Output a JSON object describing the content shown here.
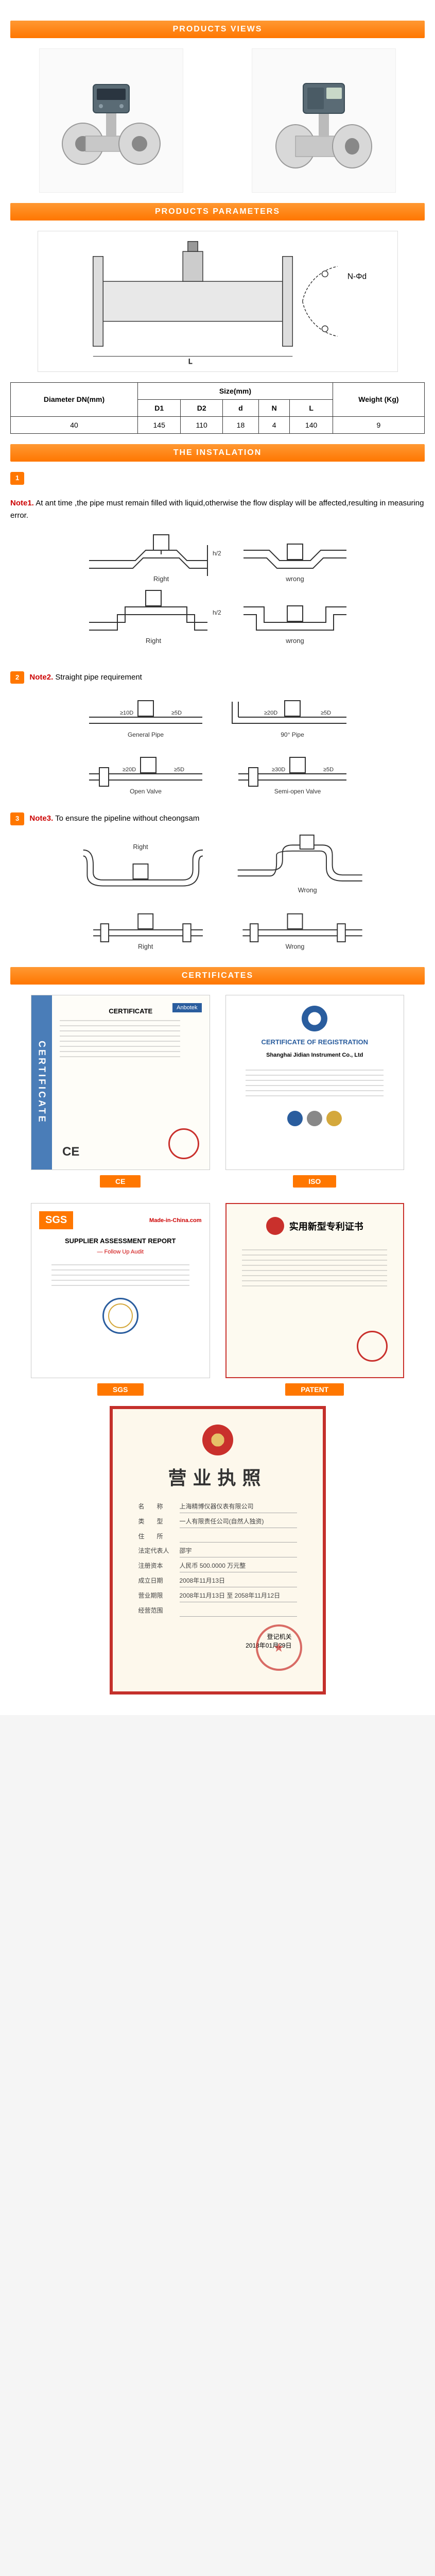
{
  "sections": {
    "views": "PRODUCTS VIEWS",
    "parameters": "PRODUCTS PARAMETERS",
    "installation": "THE INSTALATION",
    "certificates": "CERTIFICATES"
  },
  "colors": {
    "header_bg": "#ff7700",
    "header_gradient_top": "#ff9933",
    "note_red": "#c00",
    "cert_blue": "#4a7db8",
    "license_border": "#c4302b",
    "license_bg": "#fdf8ec"
  },
  "params_table": {
    "headers": {
      "diameter": "Diameter DN(mm)",
      "size": "Size(mm)",
      "weight": "Weight (Kg)",
      "d1": "D1",
      "d2": "D2",
      "d_lower": "d",
      "n": "N",
      "l": "L"
    },
    "row": {
      "diameter": "40",
      "d1": "145",
      "d2": "110",
      "d_lower": "18",
      "n": "4",
      "l": "140",
      "weight": "9"
    }
  },
  "installation": {
    "note1": {
      "badge": "1",
      "label": "Note1.",
      "text": "At ant time ,the pipe must remain filled with liquid,otherwise the flow display will be affected,resulting in measuring error.",
      "diagram_labels": {
        "right": "Right",
        "wrong": "wrong",
        "h_over_2": "h/2"
      }
    },
    "note2": {
      "badge": "2",
      "label": "Note2.",
      "text": "Straight pipe requirement",
      "diagram_labels": {
        "general": "General Pipe",
        "pipe90": "90° Pipe",
        "open_valve": "Open Valve",
        "semi_open": "Semi-open Valve"
      }
    },
    "note3": {
      "badge": "3",
      "label": "Note3.",
      "text": "To ensure the pipeline without cheongsam",
      "diagram_labels": {
        "right": "Right",
        "wrong": "Wrong"
      }
    }
  },
  "diagram_label": "N-Φd",
  "certificates": {
    "ce": {
      "label": "CE",
      "side": "CERTIFICATE",
      "title": "CERTIFICATE",
      "badge": "Anbotek",
      "mark": "CE"
    },
    "iso": {
      "label": "ISO",
      "title": "CERTIFICATE OF REGISTRATION",
      "subtitle": "Shanghai Jidian Instrument Co., Ltd"
    },
    "sgs": {
      "label": "SGS",
      "brand": "SGS",
      "source": "Made-in-China.com",
      "title": "SUPPLIER ASSESSMENT REPORT",
      "subtitle": "— Follow Up Audit"
    },
    "patent": {
      "label": "PATENT",
      "title": "实用新型专利证书"
    }
  },
  "license": {
    "title": "营业执照",
    "fields": [
      {
        "label": "名　　称",
        "value": "上海精博仪器仪表有限公司"
      },
      {
        "label": "类　　型",
        "value": "一人有限责任公司(自然人独资)"
      },
      {
        "label": "住　　所",
        "value": ""
      },
      {
        "label": "法定代表人",
        "value": "邵宇"
      },
      {
        "label": "注册资本",
        "value": "人民币 500.0000 万元整"
      },
      {
        "label": "成立日期",
        "value": "2008年11月13日"
      },
      {
        "label": "营业期限",
        "value": "2008年11月13日 至 2058年11月12日"
      },
      {
        "label": "经营范围",
        "value": ""
      }
    ],
    "registrar": "登记机关",
    "date": "2018年01月29日"
  }
}
